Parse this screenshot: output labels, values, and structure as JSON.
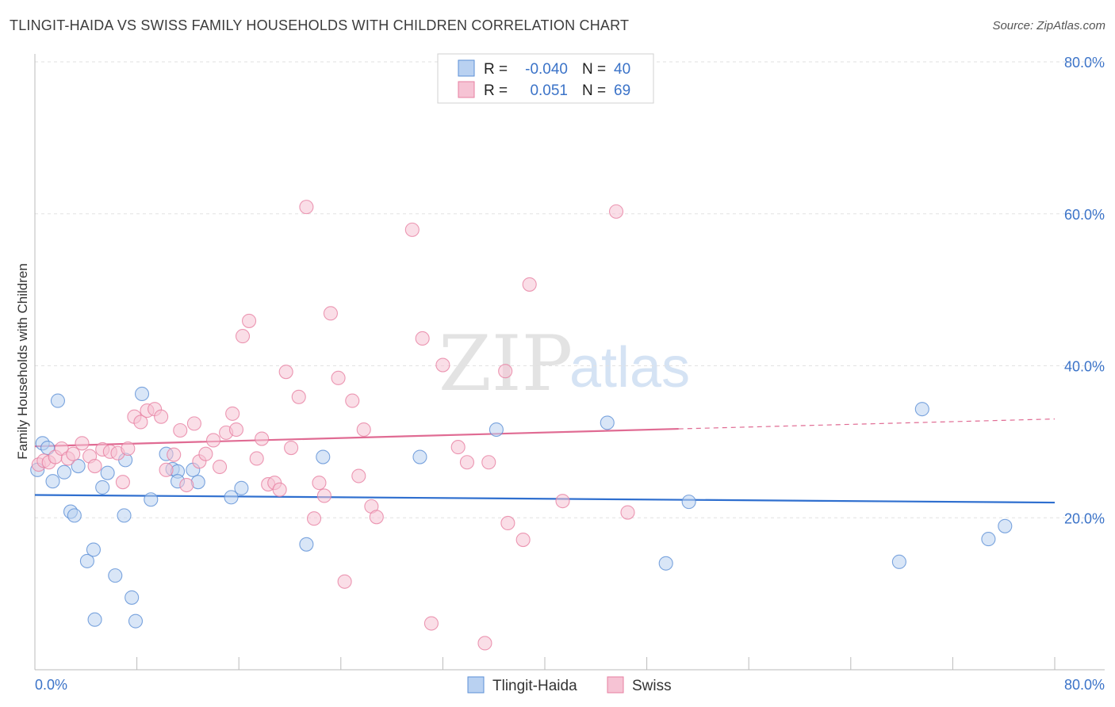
{
  "header": {
    "title": "TLINGIT-HAIDA VS SWISS FAMILY HOUSEHOLDS WITH CHILDREN CORRELATION CHART",
    "source": "Source: ZipAtlas.com"
  },
  "watermark": {
    "zip": "ZIP",
    "atlas": "atlas"
  },
  "legend": {
    "rows": [
      {
        "r_label": "R =",
        "r_value": "-0.040",
        "n_label": "N =",
        "n_value": "40"
      },
      {
        "r_label": "R =",
        "r_value": "0.051",
        "n_label": "N =",
        "n_value": "69"
      }
    ]
  },
  "bottom_legend": {
    "items": [
      "Tlingit-Haida",
      "Swiss"
    ]
  },
  "chart_data": {
    "type": "scatter",
    "title": "TLINGIT-HAIDA VS SWISS FAMILY HOUSEHOLDS WITH CHILDREN CORRELATION CHART",
    "xlabel": "",
    "ylabel": "Family Households with Children",
    "xlim": [
      0,
      80
    ],
    "ylim": [
      0,
      80
    ],
    "x_tick_labels": [
      "0.0%",
      "80.0%"
    ],
    "y_ticks": [
      20,
      40,
      60,
      80
    ],
    "y_tick_labels": [
      "20.0%",
      "40.0%",
      "60.0%",
      "80.0%"
    ],
    "grid": true,
    "colors": {
      "tlingit": "#5b8fd6",
      "tlingit_fill": "#b9d1f1",
      "swiss": "#e77fa1",
      "swiss_fill": "#f6c3d4",
      "tick_label": "#3b73c8"
    },
    "series": [
      {
        "name": "Tlingit-Haida",
        "trend": {
          "x0": 0,
          "y0": 23.0,
          "x1": 80,
          "y1": 22.0
        },
        "points": [
          [
            0.2,
            26.3
          ],
          [
            0.6,
            29.8
          ],
          [
            1.0,
            29.2
          ],
          [
            1.4,
            24.8
          ],
          [
            1.8,
            35.4
          ],
          [
            2.3,
            26.0
          ],
          [
            2.8,
            20.8
          ],
          [
            3.1,
            20.3
          ],
          [
            3.4,
            26.8
          ],
          [
            4.1,
            14.3
          ],
          [
            4.6,
            15.8
          ],
          [
            4.7,
            6.6
          ],
          [
            5.3,
            24.0
          ],
          [
            5.7,
            25.9
          ],
          [
            6.3,
            12.4
          ],
          [
            7.0,
            20.3
          ],
          [
            7.1,
            27.6
          ],
          [
            7.6,
            9.5
          ],
          [
            7.9,
            6.4
          ],
          [
            8.4,
            36.3
          ],
          [
            9.1,
            22.4
          ],
          [
            10.3,
            28.4
          ],
          [
            10.8,
            26.4
          ],
          [
            11.2,
            26.1
          ],
          [
            11.2,
            24.8
          ],
          [
            12.4,
            26.3
          ],
          [
            12.8,
            24.7
          ],
          [
            15.4,
            22.7
          ],
          [
            16.2,
            23.9
          ],
          [
            21.3,
            16.5
          ],
          [
            22.6,
            28.0
          ],
          [
            30.2,
            28.0
          ],
          [
            36.2,
            31.6
          ],
          [
            44.9,
            32.5
          ],
          [
            49.5,
            14.0
          ],
          [
            51.3,
            22.1
          ],
          [
            67.8,
            14.2
          ],
          [
            69.6,
            34.3
          ],
          [
            74.8,
            17.2
          ],
          [
            76.1,
            18.9
          ]
        ]
      },
      {
        "name": "Swiss",
        "trend": {
          "x0": 0,
          "y0": 29.4,
          "x1": 50.5,
          "y1": 31.7,
          "dash_x1": 80,
          "dash_y1": 33.0
        },
        "points": [
          [
            0.3,
            27.0
          ],
          [
            0.7,
            27.5
          ],
          [
            1.1,
            27.3
          ],
          [
            1.6,
            28.0
          ],
          [
            2.1,
            29.1
          ],
          [
            2.6,
            27.8
          ],
          [
            3.0,
            28.4
          ],
          [
            3.7,
            29.8
          ],
          [
            4.3,
            28.1
          ],
          [
            4.7,
            26.8
          ],
          [
            5.3,
            29.0
          ],
          [
            5.9,
            28.7
          ],
          [
            6.5,
            28.5
          ],
          [
            6.9,
            24.7
          ],
          [
            7.3,
            29.1
          ],
          [
            7.8,
            33.3
          ],
          [
            8.3,
            32.6
          ],
          [
            8.8,
            34.1
          ],
          [
            9.4,
            34.3
          ],
          [
            9.9,
            33.3
          ],
          [
            10.3,
            26.3
          ],
          [
            10.9,
            28.3
          ],
          [
            11.4,
            31.5
          ],
          [
            11.9,
            24.3
          ],
          [
            12.5,
            32.4
          ],
          [
            12.9,
            27.4
          ],
          [
            13.4,
            28.4
          ],
          [
            14.0,
            30.2
          ],
          [
            14.5,
            26.7
          ],
          [
            15.0,
            31.2
          ],
          [
            15.5,
            33.7
          ],
          [
            15.8,
            31.6
          ],
          [
            16.3,
            43.9
          ],
          [
            16.8,
            45.9
          ],
          [
            17.4,
            27.8
          ],
          [
            17.8,
            30.4
          ],
          [
            18.3,
            24.4
          ],
          [
            18.8,
            24.6
          ],
          [
            19.2,
            23.7
          ],
          [
            19.7,
            39.2
          ],
          [
            20.1,
            29.2
          ],
          [
            20.7,
            35.9
          ],
          [
            21.3,
            60.9
          ],
          [
            21.9,
            19.9
          ],
          [
            22.3,
            24.6
          ],
          [
            22.7,
            22.9
          ],
          [
            23.2,
            46.9
          ],
          [
            23.8,
            38.4
          ],
          [
            24.3,
            11.6
          ],
          [
            24.9,
            35.4
          ],
          [
            25.4,
            25.5
          ],
          [
            25.8,
            31.6
          ],
          [
            26.4,
            21.5
          ],
          [
            26.8,
            20.1
          ],
          [
            29.6,
            57.9
          ],
          [
            30.4,
            43.6
          ],
          [
            31.1,
            6.1
          ],
          [
            32.0,
            40.1
          ],
          [
            33.2,
            29.3
          ],
          [
            33.9,
            27.3
          ],
          [
            35.3,
            3.5
          ],
          [
            35.6,
            27.3
          ],
          [
            36.9,
            39.3
          ],
          [
            37.1,
            19.3
          ],
          [
            38.3,
            17.1
          ],
          [
            38.8,
            50.7
          ],
          [
            41.4,
            22.2
          ],
          [
            45.6,
            60.3
          ],
          [
            46.5,
            20.7
          ]
        ]
      }
    ]
  }
}
